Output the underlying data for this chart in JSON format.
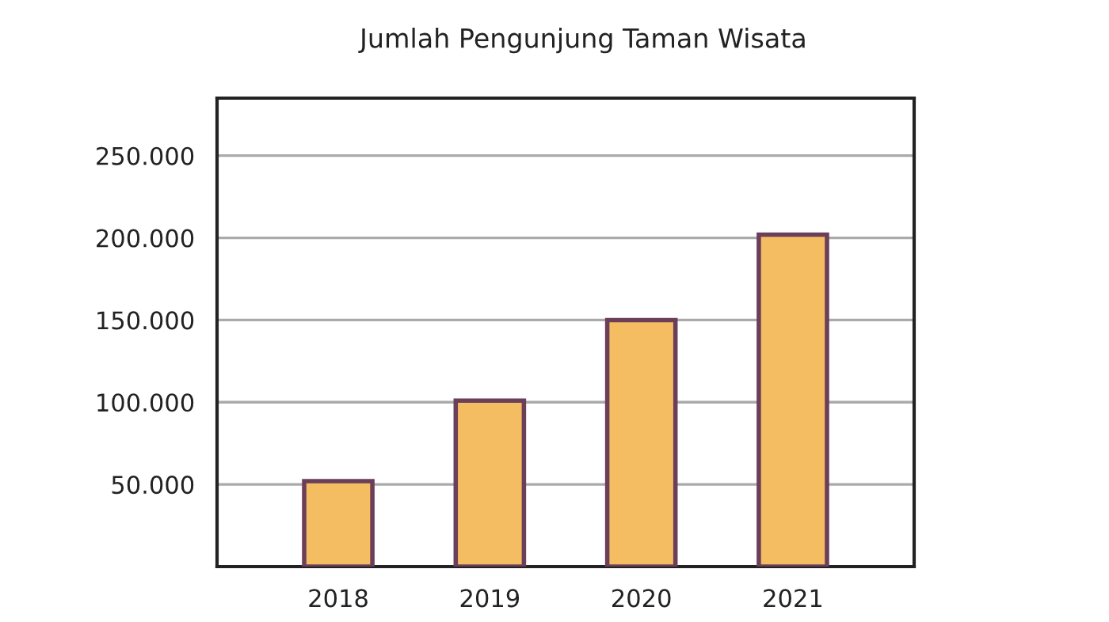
{
  "chart_data": {
    "type": "bar",
    "title": "Jumlah Pengunjung Taman Wisata",
    "categories": [
      "2018",
      "2019",
      "2020",
      "2021"
    ],
    "values": [
      52000,
      101000,
      150000,
      202000
    ],
    "color": "#f4bd62",
    "ylim": [
      0,
      285000
    ],
    "yticks": [
      {
        "value": 50000,
        "label": "50.000"
      },
      {
        "value": 100000,
        "label": "100.000"
      },
      {
        "value": 150000,
        "label": "150.000"
      },
      {
        "value": 200000,
        "label": "200.000"
      },
      {
        "value": 250000,
        "label": "250.000"
      }
    ],
    "grid": "y"
  }
}
